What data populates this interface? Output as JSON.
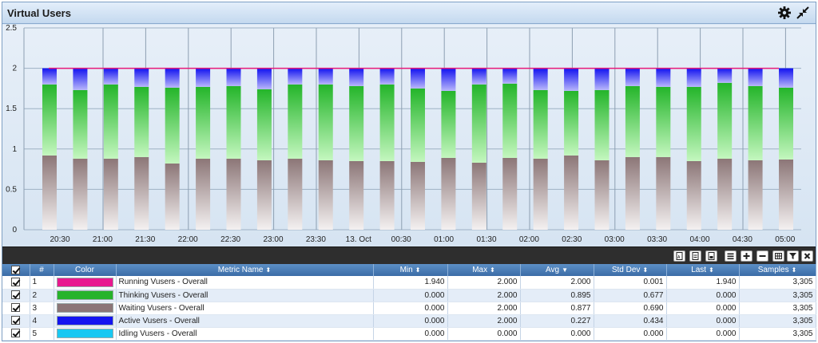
{
  "window": {
    "title": "Virtual Users",
    "icons": [
      "gear-icon",
      "collapse-icon"
    ]
  },
  "chart_data": {
    "type": "bar",
    "stacked": true,
    "ylim": [
      0,
      2.5
    ],
    "yticks": [
      "0",
      "0.5",
      "1",
      "1.5",
      "2",
      "2.5"
    ],
    "xticks": [
      "20:30",
      "21:00",
      "21:30",
      "22:00",
      "22:30",
      "23:00",
      "23:30",
      "13. Oct",
      "00:30",
      "01:00",
      "01:30",
      "02:00",
      "02:30",
      "03:00",
      "03:30",
      "04:00",
      "04:30",
      "05:00"
    ],
    "grid": true,
    "colors": {
      "waiting": "#8c7677",
      "thinking": "#24b52a",
      "active": "#1212f0",
      "running": "#e8197a"
    },
    "waiting": [
      0.92,
      0.88,
      0.88,
      0.9,
      0.82,
      0.88,
      0.88,
      0.86,
      0.88,
      0.86,
      0.85,
      0.85,
      0.84,
      0.89,
      0.83,
      0.89,
      0.88,
      0.92,
      0.86,
      0.9,
      0.9,
      0.85,
      0.88,
      0.86,
      0.87
    ],
    "thinking": [
      0.88,
      0.85,
      0.92,
      0.87,
      0.94,
      0.89,
      0.9,
      0.88,
      0.92,
      0.94,
      0.93,
      0.95,
      0.91,
      0.83,
      0.97,
      0.92,
      0.85,
      0.8,
      0.87,
      0.88,
      0.87,
      0.92,
      0.94,
      0.92,
      0.89
    ],
    "running": [
      2.0,
      2.0,
      2.0,
      2.0,
      2.0,
      2.0,
      2.0,
      2.0,
      2.0,
      2.0,
      2.0,
      2.0,
      2.0,
      2.0,
      2.0,
      2.0,
      2.0,
      2.0,
      2.0,
      2.0,
      2.0,
      2.0,
      2.0,
      2.0,
      2.0
    ]
  },
  "toolbar": {
    "buttons": [
      "pdf-icon",
      "export-icon",
      "save-icon",
      "menu-icon",
      "plus-icon",
      "minus-icon",
      "grid-icon",
      "filter-icon",
      "close-icon"
    ]
  },
  "table": {
    "headers": {
      "num": "#",
      "color": "Color",
      "metric": "Metric Name",
      "min": "Min",
      "max": "Max",
      "avg": "Avg",
      "std": "Std Dev",
      "last": "Last",
      "samples": "Samples"
    },
    "rows": [
      {
        "num": "1",
        "color": "#e8198f",
        "metric": "Running Vusers - Overall",
        "min": "1.940",
        "max": "2.000",
        "avg": "2.000",
        "std": "0.001",
        "last": "1.940",
        "samples": "3,305"
      },
      {
        "num": "2",
        "color": "#27b32b",
        "metric": "Thinking Vusers - Overall",
        "min": "0.000",
        "max": "2.000",
        "avg": "0.895",
        "std": "0.677",
        "last": "0.000",
        "samples": "3,305"
      },
      {
        "num": "3",
        "color": "#8c7677",
        "metric": "Waiting Vusers - Overall",
        "min": "0.000",
        "max": "2.000",
        "avg": "0.877",
        "std": "0.690",
        "last": "0.000",
        "samples": "3,305"
      },
      {
        "num": "4",
        "color": "#1414f0",
        "metric": "Active Vusers - Overall",
        "min": "0.000",
        "max": "2.000",
        "avg": "0.227",
        "std": "0.434",
        "last": "0.000",
        "samples": "3,305"
      },
      {
        "num": "5",
        "color": "#19c8f2",
        "metric": "Idling Vusers - Overall",
        "min": "0.000",
        "max": "0.000",
        "avg": "0.000",
        "std": "0.000",
        "last": "0.000",
        "samples": "3,305"
      }
    ]
  }
}
